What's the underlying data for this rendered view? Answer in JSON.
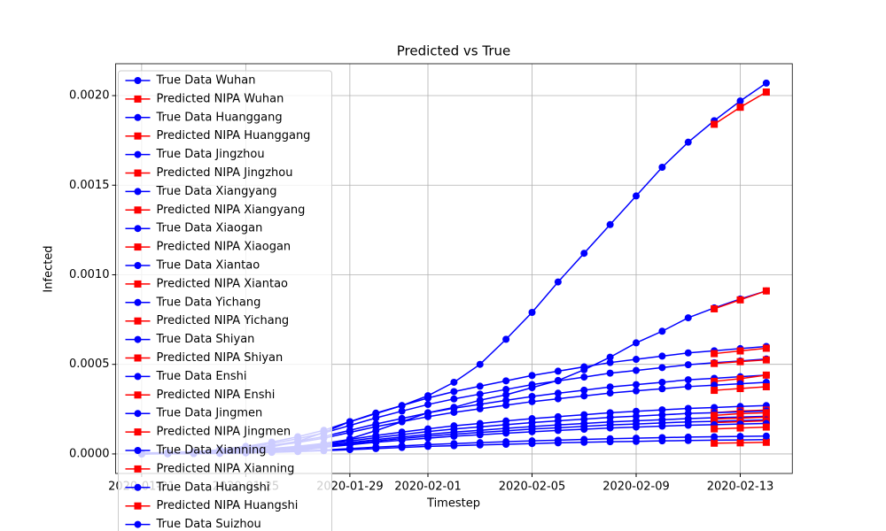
{
  "chart_data": {
    "type": "line",
    "title": "Predicted vs True",
    "x_label": "Timestep",
    "y_label": "Infected",
    "x": [
      "2020-01-21",
      "2020-01-22",
      "2020-01-23",
      "2020-01-24",
      "2020-01-25",
      "2020-01-26",
      "2020-01-27",
      "2020-01-28",
      "2020-01-29",
      "2020-01-30",
      "2020-01-31",
      "2020-02-01",
      "2020-02-02",
      "2020-02-03",
      "2020-02-04",
      "2020-02-05",
      "2020-02-06",
      "2020-02-07",
      "2020-02-08",
      "2020-02-09",
      "2020-02-10",
      "2020-02-11",
      "2020-02-12",
      "2020-02-13",
      "2020-02-14"
    ],
    "xlim": [
      "2020-01-20",
      "2020-02-15"
    ],
    "xticks": [
      "2020-01-21",
      "2020-01-25",
      "2020-01-29",
      "2020-02-01",
      "2020-02-05",
      "2020-02-09",
      "2020-02-13"
    ],
    "ylim": [
      -0.000109,
      0.002178
    ],
    "yticks": [
      {
        "value": 0,
        "label": "0.0000"
      },
      {
        "value": 0.0005,
        "label": "0.0005"
      },
      {
        "value": 0.001,
        "label": "0.0010"
      },
      {
        "value": 0.0015,
        "label": "0.0015"
      },
      {
        "value": 0.002,
        "label": "0.0020"
      }
    ],
    "grid": true,
    "legend": "upper left",
    "series": [
      {
        "name": "True Data Wuhan",
        "color": "#0000ff",
        "marker": "o",
        "values": [
          5e-06,
          8e-06,
          1.2e-05,
          1.6e-05,
          2e-05,
          4e-05,
          7e-05,
          0.00012,
          0.00018,
          0.000225,
          0.00027,
          0.000325,
          0.0004,
          0.0005,
          0.00064,
          0.00079,
          0.00096,
          0.00112,
          0.00128,
          0.00144,
          0.0016,
          0.00174,
          0.00186,
          0.00197,
          0.00207
        ]
      },
      {
        "name": "Predicted NIPA Wuhan",
        "color": "#ff0000",
        "marker": "s",
        "x": [
          "2020-02-12",
          "2020-02-13",
          "2020-02-14"
        ],
        "values": [
          0.00184,
          0.001935,
          0.00202
        ]
      },
      {
        "name": "True Data Huanggang",
        "color": "#0000ff",
        "marker": "o",
        "values": [
          0,
          1e-06,
          2e-06,
          4e-06,
          7e-06,
          1.2e-05,
          2e-05,
          3.5e-05,
          8.5e-05,
          0.00013,
          0.00018,
          0.00023,
          0.00026,
          0.0003,
          0.00033,
          0.00037,
          0.00041,
          0.00047,
          0.00054,
          0.00062,
          0.000685,
          0.00076,
          0.000815,
          0.000865,
          0.00091
        ]
      },
      {
        "name": "Predicted NIPA Huanggang",
        "color": "#ff0000",
        "marker": "s",
        "x": [
          "2020-02-12",
          "2020-02-13",
          "2020-02-14"
        ],
        "values": [
          0.00081,
          0.00086,
          0.00091
        ]
      },
      {
        "name": "True Data Jingzhou",
        "color": "#0000ff",
        "marker": "o",
        "values": [
          0,
          4e-06,
          9e-06,
          1.8e-05,
          3.1e-05,
          4.8e-05,
          7e-05,
          9.7e-05,
          0.000132,
          0.000167,
          0.000198,
          0.000229,
          0.000255,
          0.000277,
          0.000299,
          0.000321,
          0.000339,
          0.000356,
          0.000374,
          0.000387,
          0.0004,
          0.000414,
          0.000422,
          0.000431,
          0.00044
        ]
      },
      {
        "name": "Predicted NIPA Jingzhou",
        "color": "#ff0000",
        "marker": "s",
        "x": [
          "2020-02-12",
          "2020-02-13",
          "2020-02-14"
        ],
        "values": [
          0.000405,
          0.00042,
          0.00044
        ]
      },
      {
        "name": "True Data Xiangyang",
        "color": "#0000ff",
        "marker": "o",
        "values": [
          0,
          2e-06,
          4e-06,
          8e-06,
          1.5e-05,
          2.3e-05,
          3.4e-05,
          4.6e-05,
          6.3e-05,
          8e-05,
          9.5e-05,
          0.000109,
          0.000122,
          0.000132,
          0.000143,
          0.000153,
          0.000162,
          0.00017,
          0.000179,
          0.000185,
          0.000191,
          0.000197,
          0.000202,
          0.000206,
          0.00021
        ]
      },
      {
        "name": "Predicted NIPA Xiangyang",
        "color": "#ff0000",
        "marker": "s",
        "x": [
          "2020-02-12",
          "2020-02-13",
          "2020-02-14"
        ],
        "values": [
          0.000195,
          0.0002,
          0.000205
        ]
      },
      {
        "name": "True Data Xiaogan",
        "color": "#0000ff",
        "marker": "o",
        "values": [
          0,
          6e-06,
          1.2e-05,
          2.4e-05,
          4.2e-05,
          6.6e-05,
          9.6e-05,
          0.000132,
          0.00018,
          0.000228,
          0.00027,
          0.000312,
          0.000348,
          0.000378,
          0.000408,
          0.000438,
          0.000462,
          0.000486,
          0.00051,
          0.000528,
          0.000546,
          0.000564,
          0.000576,
          0.000588,
          0.0006
        ]
      },
      {
        "name": "Predicted NIPA Xiaogan",
        "color": "#ff0000",
        "marker": "s",
        "x": [
          "2020-02-12",
          "2020-02-13",
          "2020-02-14"
        ],
        "values": [
          0.00056,
          0.000575,
          0.00059
        ]
      },
      {
        "name": "True Data Xiantao",
        "color": "#0000ff",
        "marker": "o",
        "values": [
          0,
          5e-06,
          1.1e-05,
          2.1e-05,
          3.7e-05,
          5.8e-05,
          8.5e-05,
          0.000117,
          0.000159,
          0.000201,
          0.000239,
          0.000276,
          0.000307,
          0.000334,
          0.00036,
          0.000387,
          0.000408,
          0.000429,
          0.000451,
          0.000466,
          0.000482,
          0.000498,
          0.000509,
          0.000519,
          0.00053
        ]
      },
      {
        "name": "Predicted NIPA Xiantao",
        "color": "#ff0000",
        "marker": "s",
        "x": [
          "2020-02-12",
          "2020-02-13",
          "2020-02-14"
        ],
        "values": [
          0.000505,
          0.000515,
          0.000525
        ]
      },
      {
        "name": "True Data Yichang",
        "color": "#0000ff",
        "marker": "o",
        "values": [
          0,
          3e-06,
          5e-06,
          1.1e-05,
          1.9e-05,
          3e-05,
          4.3e-05,
          5.9e-05,
          8.1e-05,
          0.000103,
          0.000122,
          0.00014,
          0.000157,
          0.00017,
          0.000184,
          0.000197,
          0.000208,
          0.000219,
          0.00023,
          0.000238,
          0.000246,
          0.000254,
          0.000259,
          0.000265,
          0.00027
        ]
      },
      {
        "name": "Predicted NIPA Yichang",
        "color": "#ff0000",
        "marker": "s",
        "x": [
          "2020-02-12",
          "2020-02-13",
          "2020-02-14"
        ],
        "values": [
          0.00023,
          0.00024,
          0.000245
        ]
      },
      {
        "name": "True Data Shiyan",
        "color": "#0000ff",
        "marker": "o",
        "values": [
          0,
          2e-06,
          4e-06,
          8e-06,
          1.3e-05,
          2.1e-05,
          3e-05,
          4.2e-05,
          5.7e-05,
          7.2e-05,
          8.6e-05,
          9.9e-05,
          0.00011,
          0.00012,
          0.000129,
          0.000139,
          0.000146,
          0.000154,
          0.000162,
          0.000167,
          0.000173,
          0.000179,
          0.000182,
          0.000186,
          0.00019
        ]
      },
      {
        "name": "Predicted NIPA Shiyan",
        "color": "#ff0000",
        "marker": "s",
        "x": [
          "2020-02-12",
          "2020-02-13",
          "2020-02-14"
        ],
        "values": [
          0.000175,
          0.00018,
          0.000185
        ]
      },
      {
        "name": "True Data Enshi",
        "color": "#0000ff",
        "marker": "o",
        "values": [
          0,
          1e-06,
          2e-06,
          3e-06,
          6e-06,
          9e-06,
          1.3e-05,
          1.8e-05,
          2.4e-05,
          3e-05,
          3.6e-05,
          4.2e-05,
          4.6e-05,
          5e-05,
          5.4e-05,
          5.8e-05,
          6.2e-05,
          6.5e-05,
          6.8e-05,
          7e-05,
          7.3e-05,
          7.5e-05,
          7.7e-05,
          7.8e-05,
          8e-05
        ]
      },
      {
        "name": "Predicted NIPA Enshi",
        "color": "#ff0000",
        "marker": "s",
        "x": [
          "2020-02-12",
          "2020-02-13",
          "2020-02-14"
        ],
        "values": [
          6e-05,
          6.2e-05,
          6.5e-05
        ]
      },
      {
        "name": "True Data Jingmen",
        "color": "#0000ff",
        "marker": "o",
        "values": [
          0,
          4e-06,
          8e-06,
          1.6e-05,
          2.8e-05,
          4.4e-05,
          6.4e-05,
          8.8e-05,
          0.00012,
          0.000152,
          0.00018,
          0.000208,
          0.000232,
          0.000252,
          0.000272,
          0.000292,
          0.000308,
          0.000324,
          0.00034,
          0.000352,
          0.000364,
          0.000376,
          0.000384,
          0.000392,
          0.0004
        ]
      },
      {
        "name": "Predicted NIPA Jingmen",
        "color": "#ff0000",
        "marker": "s",
        "x": [
          "2020-02-12",
          "2020-02-13",
          "2020-02-14"
        ],
        "values": [
          0.000355,
          0.000365,
          0.000375
        ]
      },
      {
        "name": "True Data Xianning",
        "color": "#0000ff",
        "marker": "o",
        "values": [
          0,
          2e-06,
          5e-06,
          1e-05,
          1.7e-05,
          2.6e-05,
          3.8e-05,
          5.3e-05,
          7.2e-05,
          9.1e-05,
          0.000108,
          0.000125,
          0.000139,
          0.000151,
          0.000163,
          0.000175,
          0.000185,
          0.000194,
          0.000204,
          0.000211,
          0.000218,
          0.000226,
          0.00023,
          0.000235,
          0.00024
        ]
      },
      {
        "name": "Predicted NIPA Xianning",
        "color": "#ff0000",
        "marker": "s",
        "x": [
          "2020-02-12",
          "2020-02-13",
          "2020-02-14"
        ],
        "values": [
          0.000215,
          0.000225,
          0.00023
        ]
      },
      {
        "name": "True Data Huangshi",
        "color": "#0000ff",
        "marker": "o",
        "values": [
          0,
          2e-06,
          3e-06,
          7e-06,
          1.2e-05,
          1.9e-05,
          2.7e-05,
          3.7e-05,
          5.1e-05,
          6.5e-05,
          7.7e-05,
          8.8e-05,
          9.9e-05,
          0.000107,
          0.000116,
          0.000124,
          0.000131,
          0.000138,
          0.000145,
          0.00015,
          0.000155,
          0.00016,
          0.000163,
          0.000167,
          0.00017
        ]
      },
      {
        "name": "Predicted NIPA Huangshi",
        "color": "#ff0000",
        "marker": "s",
        "x": [
          "2020-02-12",
          "2020-02-13",
          "2020-02-14"
        ],
        "values": [
          0.00014,
          0.000145,
          0.00015
        ]
      },
      {
        "name": "True Data Suizhou",
        "color": "#0000ff",
        "marker": "o",
        "values": [
          0,
          1e-06,
          2e-06,
          4e-06,
          7e-06,
          1.1e-05,
          1.6e-05,
          2.2e-05,
          3e-05,
          3.8e-05,
          4.5e-05,
          5.2e-05,
          5.8e-05,
          6.3e-05,
          6.8e-05,
          7.3e-05,
          7.7e-05,
          8.1e-05,
          8.5e-05,
          8.8e-05,
          9.1e-05,
          9.4e-05,
          9.6e-05,
          9.8e-05,
          0.0001
        ]
      }
    ]
  }
}
